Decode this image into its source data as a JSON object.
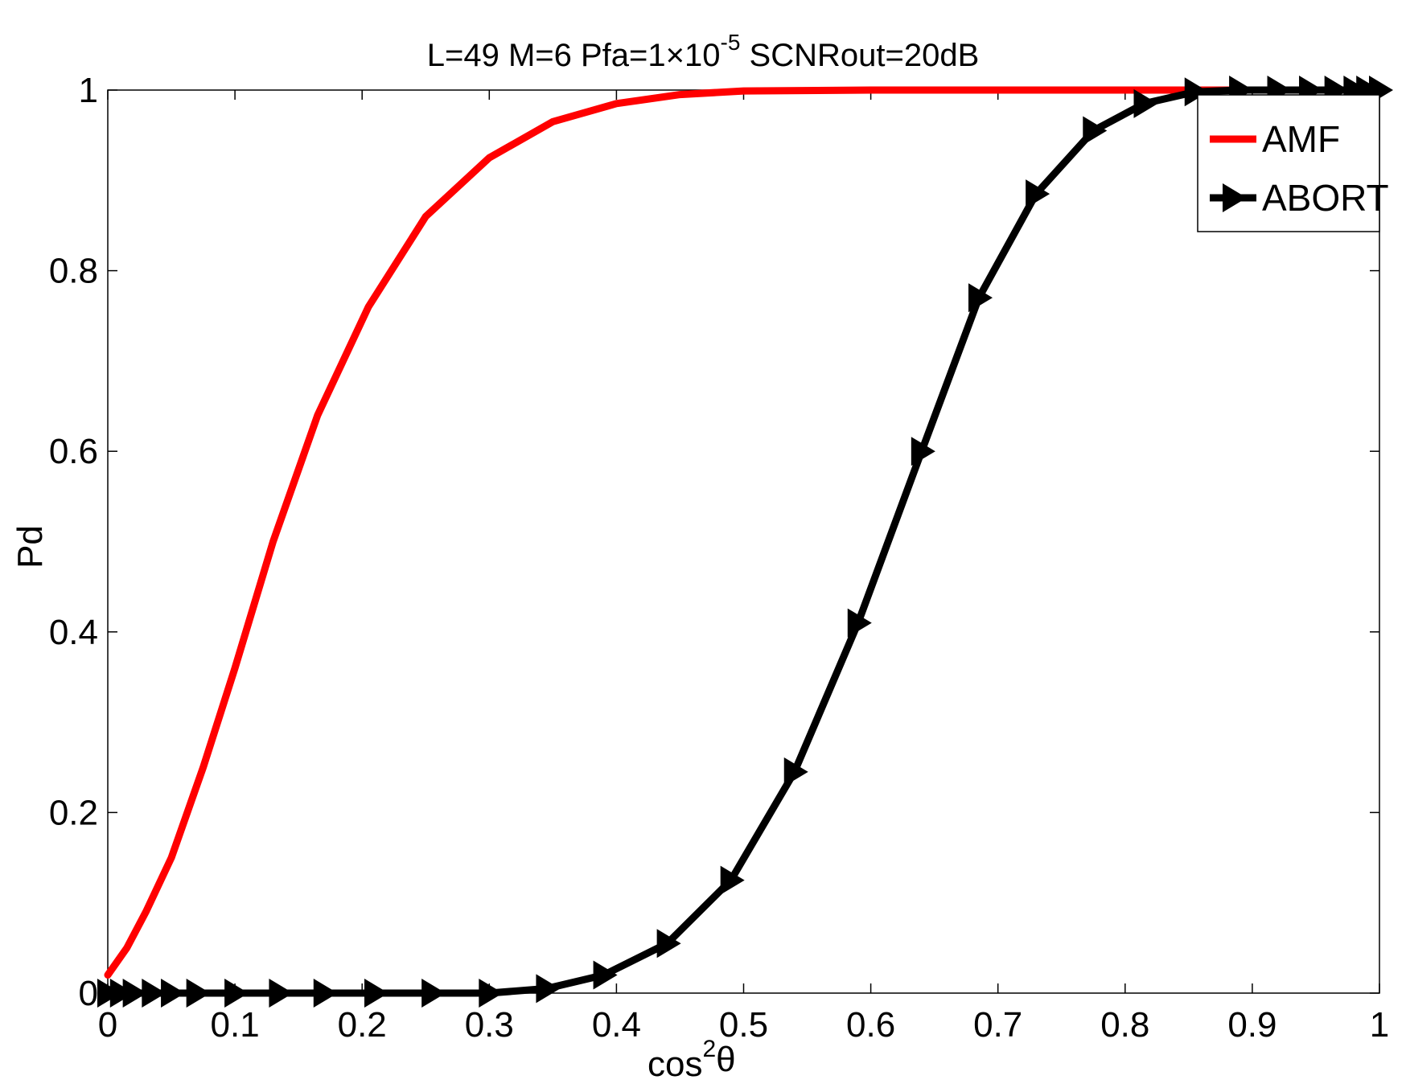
{
  "chart_data": {
    "type": "line",
    "title": {
      "base": "L=49  M=6  Pfa=1×10",
      "sup": "-5",
      "tail": " SCNRout=20dB"
    },
    "xlabel": {
      "base": "cos",
      "sup": "2",
      "tail": "θ"
    },
    "ylabel": "Pd",
    "xlim": [
      0,
      1
    ],
    "ylim": [
      0,
      1
    ],
    "x_ticks": [
      "0",
      "0.1",
      "0.2",
      "0.3",
      "0.4",
      "0.5",
      "0.6",
      "0.7",
      "0.8",
      "0.9",
      "1"
    ],
    "y_ticks": [
      "0",
      "0.2",
      "0.4",
      "0.6",
      "0.8",
      "1"
    ],
    "grid": false,
    "legend_position": "top-right",
    "series": [
      {
        "name": "AMF",
        "color": "#ff0000",
        "marker": "none",
        "x": [
          0,
          0.015,
          0.03,
          0.05,
          0.075,
          0.1,
          0.13,
          0.165,
          0.205,
          0.25,
          0.3,
          0.35,
          0.4,
          0.45,
          0.5,
          0.6,
          0.7,
          0.8,
          0.9,
          1.0
        ],
        "y": [
          0.02,
          0.05,
          0.09,
          0.15,
          0.25,
          0.36,
          0.5,
          0.64,
          0.76,
          0.86,
          0.925,
          0.965,
          0.985,
          0.995,
          0.999,
          1,
          1,
          1,
          1,
          1
        ]
      },
      {
        "name": "ABORT",
        "color": "#000000",
        "marker": "triangle-right",
        "x": [
          0,
          0.01,
          0.02,
          0.035,
          0.05,
          0.07,
          0.1,
          0.135,
          0.17,
          0.21,
          0.255,
          0.3,
          0.345,
          0.39,
          0.44,
          0.49,
          0.54,
          0.59,
          0.64,
          0.685,
          0.73,
          0.775,
          0.815,
          0.855,
          0.89,
          0.92,
          0.945,
          0.965,
          0.98,
          0.99,
          1.0
        ],
        "y": [
          0,
          0,
          0,
          0,
          0,
          0,
          0,
          0,
          0,
          0,
          0,
          0,
          0.005,
          0.02,
          0.055,
          0.125,
          0.245,
          0.41,
          0.6,
          0.77,
          0.885,
          0.955,
          0.985,
          0.998,
          1,
          1,
          1,
          1,
          1,
          1,
          1
        ]
      }
    ]
  }
}
